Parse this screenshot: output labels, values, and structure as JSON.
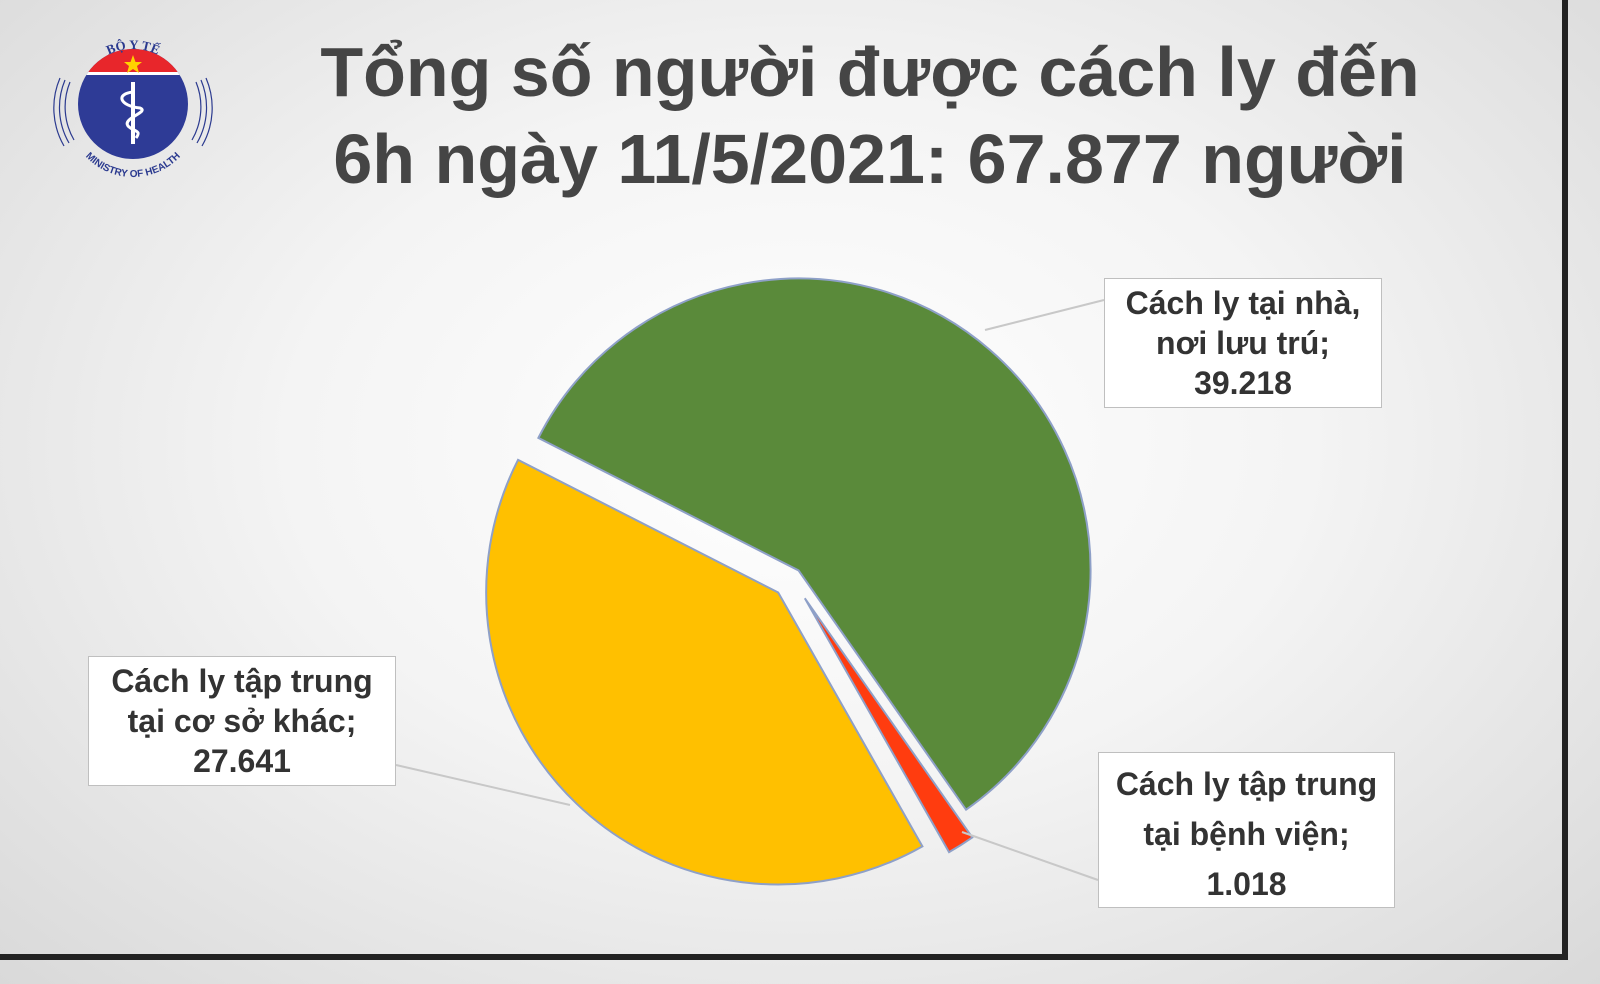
{
  "logo": {
    "top_text": "BỘ Y TẾ",
    "bottom_text": "MINISTRY OF HEALTH"
  },
  "title": {
    "line1": "Tổng số người được cách ly đến",
    "line2": "6h ngày 11/5/2021: 67.877 người"
  },
  "chart_data": {
    "type": "pie",
    "title": "Tổng số người được cách ly đến 6h ngày 11/5/2021: 67.877 người",
    "total": 67877,
    "slices": [
      {
        "label_lines": [
          "Cách ly tại nhà,",
          "nơi lưu trú;",
          "39.218"
        ],
        "value": 39218,
        "color": "#5a8a3a"
      },
      {
        "label_lines": [
          "Cách ly tập trung",
          "tại bệnh viện;",
          "1.018"
        ],
        "value": 1018,
        "color": "#ff3c0f"
      },
      {
        "label_lines": [
          "Cách ly tập trung",
          "tại cơ sở khác;",
          "27.641"
        ],
        "value": 27641,
        "color": "#ffc000"
      }
    ],
    "exploded": true
  }
}
